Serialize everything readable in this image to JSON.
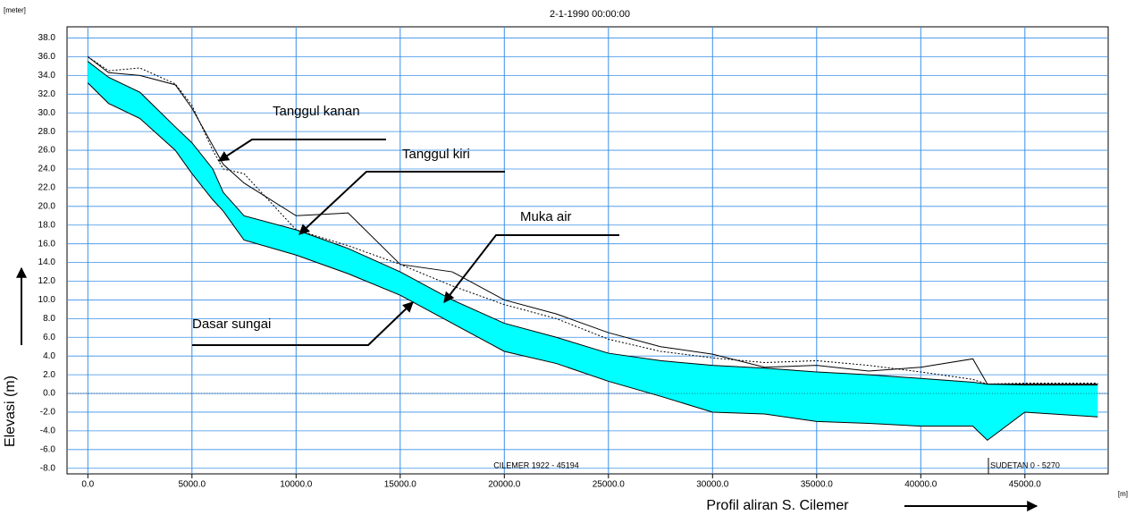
{
  "chart_data": {
    "type": "line",
    "title": "2-1-1990 00:00:00",
    "y_unit": "[meter]",
    "x_unit": "[m]",
    "y_label": "Elevasi (m)",
    "x_label": "Profil aliran S. Cilemer",
    "branch_labels": [
      "CILEMER 1922 - 45194",
      "SUDETAN 0 - 5270"
    ],
    "annotations": [
      "Tanggul kanan",
      "Tanggul kiri",
      "Muka air",
      "Dasar sungai"
    ],
    "fill_color": "#00ffff",
    "grid_color": "#3a8fe8",
    "grid": true,
    "xlim": [
      -1000,
      49000
    ],
    "ylim": [
      -8.6,
      39.2
    ],
    "xticks": [
      {
        "value": 0,
        "label": "0.0"
      },
      {
        "value": 5000,
        "label": "5000.0"
      },
      {
        "value": 10000,
        "label": "10000.0"
      },
      {
        "value": 15000,
        "label": "15000.0"
      },
      {
        "value": 20000,
        "label": "20000.0"
      },
      {
        "value": 25000,
        "label": "25000.0"
      },
      {
        "value": 30000,
        "label": "30000.0"
      },
      {
        "value": 35000,
        "label": "35000.0"
      },
      {
        "value": 40000,
        "label": "40000.0"
      },
      {
        "value": 45000,
        "label": "45000.0"
      }
    ],
    "yticks": [
      {
        "value": -8,
        "label": "-8.0"
      },
      {
        "value": -6,
        "label": "-6.0"
      },
      {
        "value": -4,
        "label": "-4.0"
      },
      {
        "value": -2,
        "label": "-2.0"
      },
      {
        "value": 0,
        "label": "0.0"
      },
      {
        "value": 2,
        "label": "2.0"
      },
      {
        "value": 4,
        "label": "4.0"
      },
      {
        "value": 6,
        "label": "6.0"
      },
      {
        "value": 8,
        "label": "8.0"
      },
      {
        "value": 10,
        "label": "10.0"
      },
      {
        "value": 12,
        "label": "12.0"
      },
      {
        "value": 14,
        "label": "14.0"
      },
      {
        "value": 16,
        "label": "16.0"
      },
      {
        "value": 18,
        "label": "18.0"
      },
      {
        "value": 20,
        "label": "20.0"
      },
      {
        "value": 22,
        "label": "22.0"
      },
      {
        "value": 24,
        "label": "24.0"
      },
      {
        "value": 26,
        "label": "26.0"
      },
      {
        "value": 28,
        "label": "28.0"
      },
      {
        "value": 30,
        "label": "30.0"
      },
      {
        "value": 32,
        "label": "32.0"
      },
      {
        "value": 34,
        "label": "34.0"
      },
      {
        "value": 36,
        "label": "36.0"
      },
      {
        "value": 38,
        "label": "38.0"
      }
    ],
    "x": [
      0,
      1000,
      2500,
      4200,
      5000,
      6000,
      6500,
      7500,
      10000,
      12500,
      15000,
      17500,
      20000,
      22500,
      25000,
      27500,
      30000,
      32500,
      35000,
      37500,
      40000,
      42500,
      43200,
      45000,
      48500
    ],
    "series": [
      {
        "color": "#000000",
        "dash": "none",
        "values": [
          33.2,
          31,
          29.4,
          26,
          23.5,
          20.7,
          19.5,
          16.4,
          14.8,
          12.8,
          10.5,
          7.5,
          4.5,
          3.2,
          1.3,
          -0.3,
          -2,
          -2.2,
          -3,
          -3.2,
          -3.5,
          -3.5,
          -5,
          -2,
          -2.5
        ]
      },
      {
        "color": "#000000",
        "dash": "none",
        "values": [
          35.5,
          33.8,
          32.2,
          28.5,
          26.8,
          24,
          21.5,
          19,
          17.5,
          15.5,
          13,
          10,
          7.5,
          6,
          4.3,
          3.5,
          3,
          2.7,
          2.3,
          2,
          1.6,
          1.2,
          1,
          0.9,
          0.9
        ]
      },
      {
        "color": "#000000",
        "dash": "none",
        "values": [
          36,
          34.3,
          34,
          33,
          30.5,
          26.5,
          24.5,
          22.5,
          19,
          19.3,
          13.8,
          13,
          10,
          8.5,
          6.5,
          5,
          4.2,
          2.8,
          3,
          2.4,
          2.8,
          3.7,
          1,
          1,
          1
        ]
      },
      {
        "color": "#000000",
        "dash": "2 2",
        "values": [
          36,
          34.5,
          34.8,
          33.1,
          30.8,
          26,
          24,
          23.5,
          17.5,
          15.8,
          13.8,
          11.5,
          9.5,
          8,
          5.8,
          4.5,
          3.8,
          3.3,
          3.5,
          3,
          2.3,
          1.5,
          1,
          1.1,
          1.1
        ]
      }
    ]
  }
}
